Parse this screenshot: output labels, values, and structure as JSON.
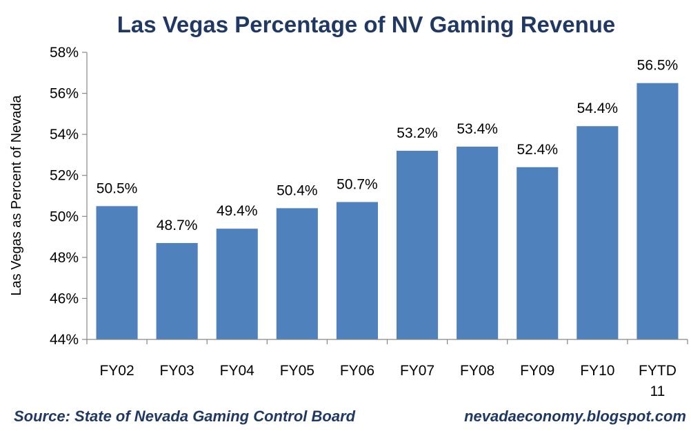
{
  "chart_data": {
    "type": "bar",
    "title": "Las Vegas Percentage of NV Gaming Revenue",
    "ylabel": "Las Vegas as Percent of Nevada",
    "xlabel": "",
    "categories": [
      [
        "FY02"
      ],
      [
        "FY03"
      ],
      [
        "FY04"
      ],
      [
        "FY05"
      ],
      [
        "FY06"
      ],
      [
        "FY07"
      ],
      [
        "FY08"
      ],
      [
        "FY09"
      ],
      [
        "FY10"
      ],
      [
        "FYTD",
        "11"
      ]
    ],
    "values": [
      50.5,
      48.7,
      49.4,
      50.4,
      50.7,
      53.2,
      53.4,
      52.4,
      54.4,
      56.5
    ],
    "data_labels": [
      "50.5%",
      "48.7%",
      "49.4%",
      "50.4%",
      "50.7%",
      "53.2%",
      "53.4%",
      "52.4%",
      "54.4%",
      "56.5%"
    ],
    "ylim": [
      44,
      58
    ],
    "yticks": [
      44,
      46,
      48,
      50,
      52,
      54,
      56,
      58
    ],
    "ytick_labels": [
      "44%",
      "46%",
      "48%",
      "50%",
      "52%",
      "54%",
      "56%",
      "58%"
    ],
    "grid": false,
    "legend": "none"
  },
  "colors": {
    "bar": "#4F81BD",
    "title": "#1F3864",
    "footer": "#1F3864",
    "axis": "#868686"
  },
  "footer": {
    "source": "Source: State of Nevada Gaming Control Board",
    "site": "nevadaeconomy.blogspot.com"
  }
}
